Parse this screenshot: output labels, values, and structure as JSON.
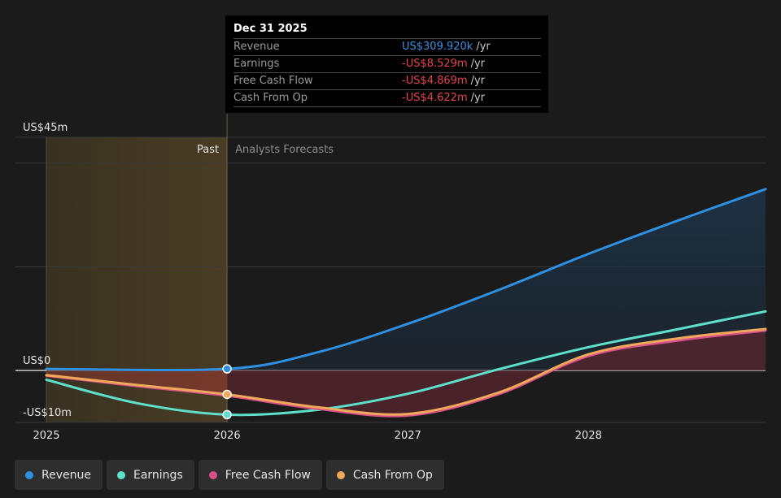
{
  "tooltip": {
    "date": "Dec 31 2025",
    "rows": [
      {
        "label": "Revenue",
        "value": "US$309.920k",
        "unit": "/yr",
        "color": "#3b91e0"
      },
      {
        "label": "Earnings",
        "value": "-US$8.529m",
        "unit": "/yr",
        "color": "#e8414f"
      },
      {
        "label": "Free Cash Flow",
        "value": "-US$4.869m",
        "unit": "/yr",
        "color": "#e8414f"
      },
      {
        "label": "Cash From Op",
        "value": "-US$4.622m",
        "unit": "/yr",
        "color": "#e8414f"
      }
    ]
  },
  "legend": [
    {
      "label": "Revenue",
      "color": "#2f8fe0"
    },
    {
      "label": "Earnings",
      "color": "#5ee0cc"
    },
    {
      "label": "Free Cash Flow",
      "color": "#d9508a"
    },
    {
      "label": "Cash From Op",
      "color": "#f0a85a"
    }
  ],
  "chart_data": {
    "type": "area",
    "y_tick_labels": [
      "US$45m",
      "US$0",
      "-US$10m"
    ],
    "y_ticks": [
      45,
      0,
      -10
    ],
    "ylim": [
      -10,
      45
    ],
    "xlim": [
      2025,
      2028.98
    ],
    "x_tick_labels": [
      "2025",
      "2026",
      "2027",
      "2028"
    ],
    "x_ticks": [
      2025,
      2026,
      2027,
      2028
    ],
    "past_label": "Past",
    "forecast_label": "Analysts Forecasts",
    "past_end": 2026,
    "series": [
      {
        "name": "Revenue",
        "color": "#2f8fe0",
        "x": [
          2025,
          2026,
          2026.5,
          2027,
          2027.5,
          2028,
          2028.5,
          2028.98
        ],
        "y": [
          0.3,
          0.31,
          3.5,
          9,
          15.5,
          22.5,
          29,
          35
        ]
      },
      {
        "name": "Earnings",
        "color": "#5ee0cc",
        "x": [
          2025,
          2025.5,
          2026,
          2026.5,
          2027,
          2027.5,
          2028,
          2028.5,
          2028.98
        ],
        "y": [
          -1.8,
          -6.3,
          -8.53,
          -7.6,
          -4.5,
          0.2,
          4.5,
          8,
          11.4
        ]
      },
      {
        "name": "Free Cash Flow",
        "color": "#d9508a",
        "x": [
          2025,
          2025.5,
          2026,
          2026.5,
          2027,
          2027.5,
          2028,
          2028.5,
          2028.98
        ],
        "y": [
          -1.0,
          -3.0,
          -4.87,
          -7.4,
          -8.7,
          -4.6,
          2.8,
          5.8,
          7.7
        ]
      },
      {
        "name": "Cash From Op",
        "color": "#f0a85a",
        "x": [
          2025,
          2025.5,
          2026,
          2026.5,
          2027,
          2027.5,
          2028,
          2028.5,
          2028.98
        ],
        "y": [
          -0.9,
          -2.8,
          -4.62,
          -7.1,
          -8.4,
          -4.3,
          3.1,
          6.2,
          8.0
        ]
      }
    ],
    "highlight_x": 2026
  }
}
